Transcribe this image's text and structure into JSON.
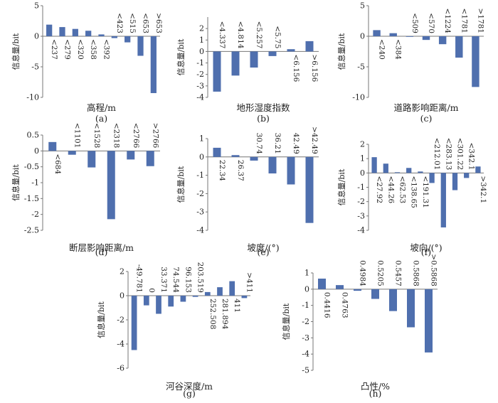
{
  "chart_data": [
    {
      "type": "bar",
      "panel_label": "(a)",
      "xlabel": "高程/m",
      "ylabel": "信息量/bit",
      "ylim": [
        -10,
        5
      ],
      "yticks": [
        -10,
        -5,
        0,
        5
      ],
      "grid": false,
      "legend": "none",
      "bar_color": "#4f6fae",
      "categories": [
        "<237",
        "<279",
        "<320",
        "<358",
        "<392",
        "<423",
        "<515",
        "<653",
        ">653"
      ],
      "values": [
        1.9,
        1.5,
        1.2,
        0.9,
        0.3,
        -0.3,
        -1.0,
        -3.2,
        -9.3
      ]
    },
    {
      "type": "bar",
      "panel_label": "(b)",
      "xlabel": "地形湿度指数",
      "ylabel": "信息量/bit",
      "ylim": [
        -4,
        3
      ],
      "yticks": [
        -4,
        -3,
        -2,
        -1,
        0,
        1,
        2
      ],
      "grid": false,
      "legend": "none",
      "bar_color": "#4f6fae",
      "categories": [
        "<4.337",
        "<4.814",
        "<5.257",
        "<5.75",
        "<6.156",
        ">6.156"
      ],
      "values": [
        -3.5,
        -2.1,
        -1.4,
        -0.4,
        0.2,
        0.9
      ]
    },
    {
      "type": "bar",
      "panel_label": "(c)",
      "xlabel": "道路影响距离/m",
      "ylabel": "信息量/bit",
      "ylim": [
        -10,
        5
      ],
      "yticks": [
        -10,
        -5,
        0,
        5
      ],
      "grid": false,
      "legend": "none",
      "bar_color": "#4f6fae",
      "categories": [
        "<240",
        "<384",
        "<509",
        "<570",
        "<1224",
        "<1781",
        ">1781"
      ],
      "values": [
        1.0,
        0.5,
        -0.1,
        -0.6,
        -1.3,
        -3.5,
        -8.3
      ]
    },
    {
      "type": "bar",
      "panel_label": "(d)",
      "xlabel": "断层影响距离/m",
      "ylabel": "信息量/bit",
      "ylim": [
        -2.5,
        0.5
      ],
      "yticks": [
        -2.5,
        -2.0,
        -1.5,
        -1.0,
        -0.5,
        0,
        0.5
      ],
      "grid": false,
      "legend": "none",
      "bar_color": "#4f6fae",
      "categories": [
        "<684",
        "<1101",
        "<1528",
        "<2318",
        "<2766",
        ">2766"
      ],
      "values": [
        0.28,
        -0.12,
        -0.52,
        -2.15,
        -0.27,
        -0.48
      ]
    },
    {
      "type": "bar",
      "panel_label": "(e)",
      "xlabel": "坡度/(°)",
      "ylabel": "信息量/bit",
      "ylim": [
        -4,
        1
      ],
      "yticks": [
        -4,
        -3,
        -2,
        -1,
        0,
        1
      ],
      "grid": false,
      "legend": "none",
      "bar_color": "#4f6fae",
      "categories": [
        "22.34",
        "26.37",
        "30.74",
        "36.21",
        "42.49",
        ">42.49"
      ],
      "values": [
        0.5,
        0.1,
        -0.2,
        -0.9,
        -1.5,
        -3.6
      ]
    },
    {
      "type": "bar",
      "panel_label": "(f)",
      "xlabel": "坡向/(°)",
      "ylabel": "信息量/bit",
      "ylim": [
        -4,
        2
      ],
      "yticks": [
        -4,
        -3,
        -2,
        -1,
        0,
        1,
        2
      ],
      "grid": false,
      "legend": "none",
      "bar_color": "#4f6fae",
      "categories": [
        "<27.92",
        "<44.26",
        "<62.53",
        "<138.65",
        "<191.31",
        "<212.01",
        "<283.13",
        "<301.22",
        "<342.1",
        ">342.1"
      ],
      "values": [
        1.1,
        0.65,
        0.05,
        0.35,
        0.1,
        -0.7,
        -3.8,
        -1.2,
        -0.35,
        0.45
      ]
    },
    {
      "type": "bar",
      "panel_label": "(g)",
      "xlabel": "河谷深度/m",
      "ylabel": "信息量/bit",
      "ylim": [
        -6,
        2
      ],
      "yticks": [
        -6,
        -4,
        -2,
        0,
        2
      ],
      "grid": false,
      "legend": "none",
      "bar_color": "#4f6fae",
      "categories": [
        "-49.781",
        "0",
        "33.371",
        "74.544",
        "96.153",
        "203.519",
        "252.508",
        "281.894",
        "411",
        ">411"
      ],
      "values": [
        -4.5,
        -0.8,
        -1.5,
        -0.9,
        -0.5,
        -0.1,
        0.3,
        0.7,
        1.2,
        -0.2
      ]
    },
    {
      "type": "bar",
      "panel_label": "(h)",
      "xlabel": "凸性/%",
      "ylabel": "信息量/bit",
      "ylim": [
        -5,
        1
      ],
      "yticks": [
        -5,
        -4,
        -3,
        -2,
        -1,
        0,
        1
      ],
      "grid": false,
      "legend": "none",
      "bar_color": "#4f6fae",
      "categories": [
        "0.4416",
        "0.4763",
        "0.4984",
        "0.5205",
        "0.5457",
        "0.5868",
        ">0.5868"
      ],
      "values": [
        0.65,
        0.25,
        -0.1,
        -0.6,
        -1.35,
        -2.35,
        -3.9
      ]
    }
  ]
}
